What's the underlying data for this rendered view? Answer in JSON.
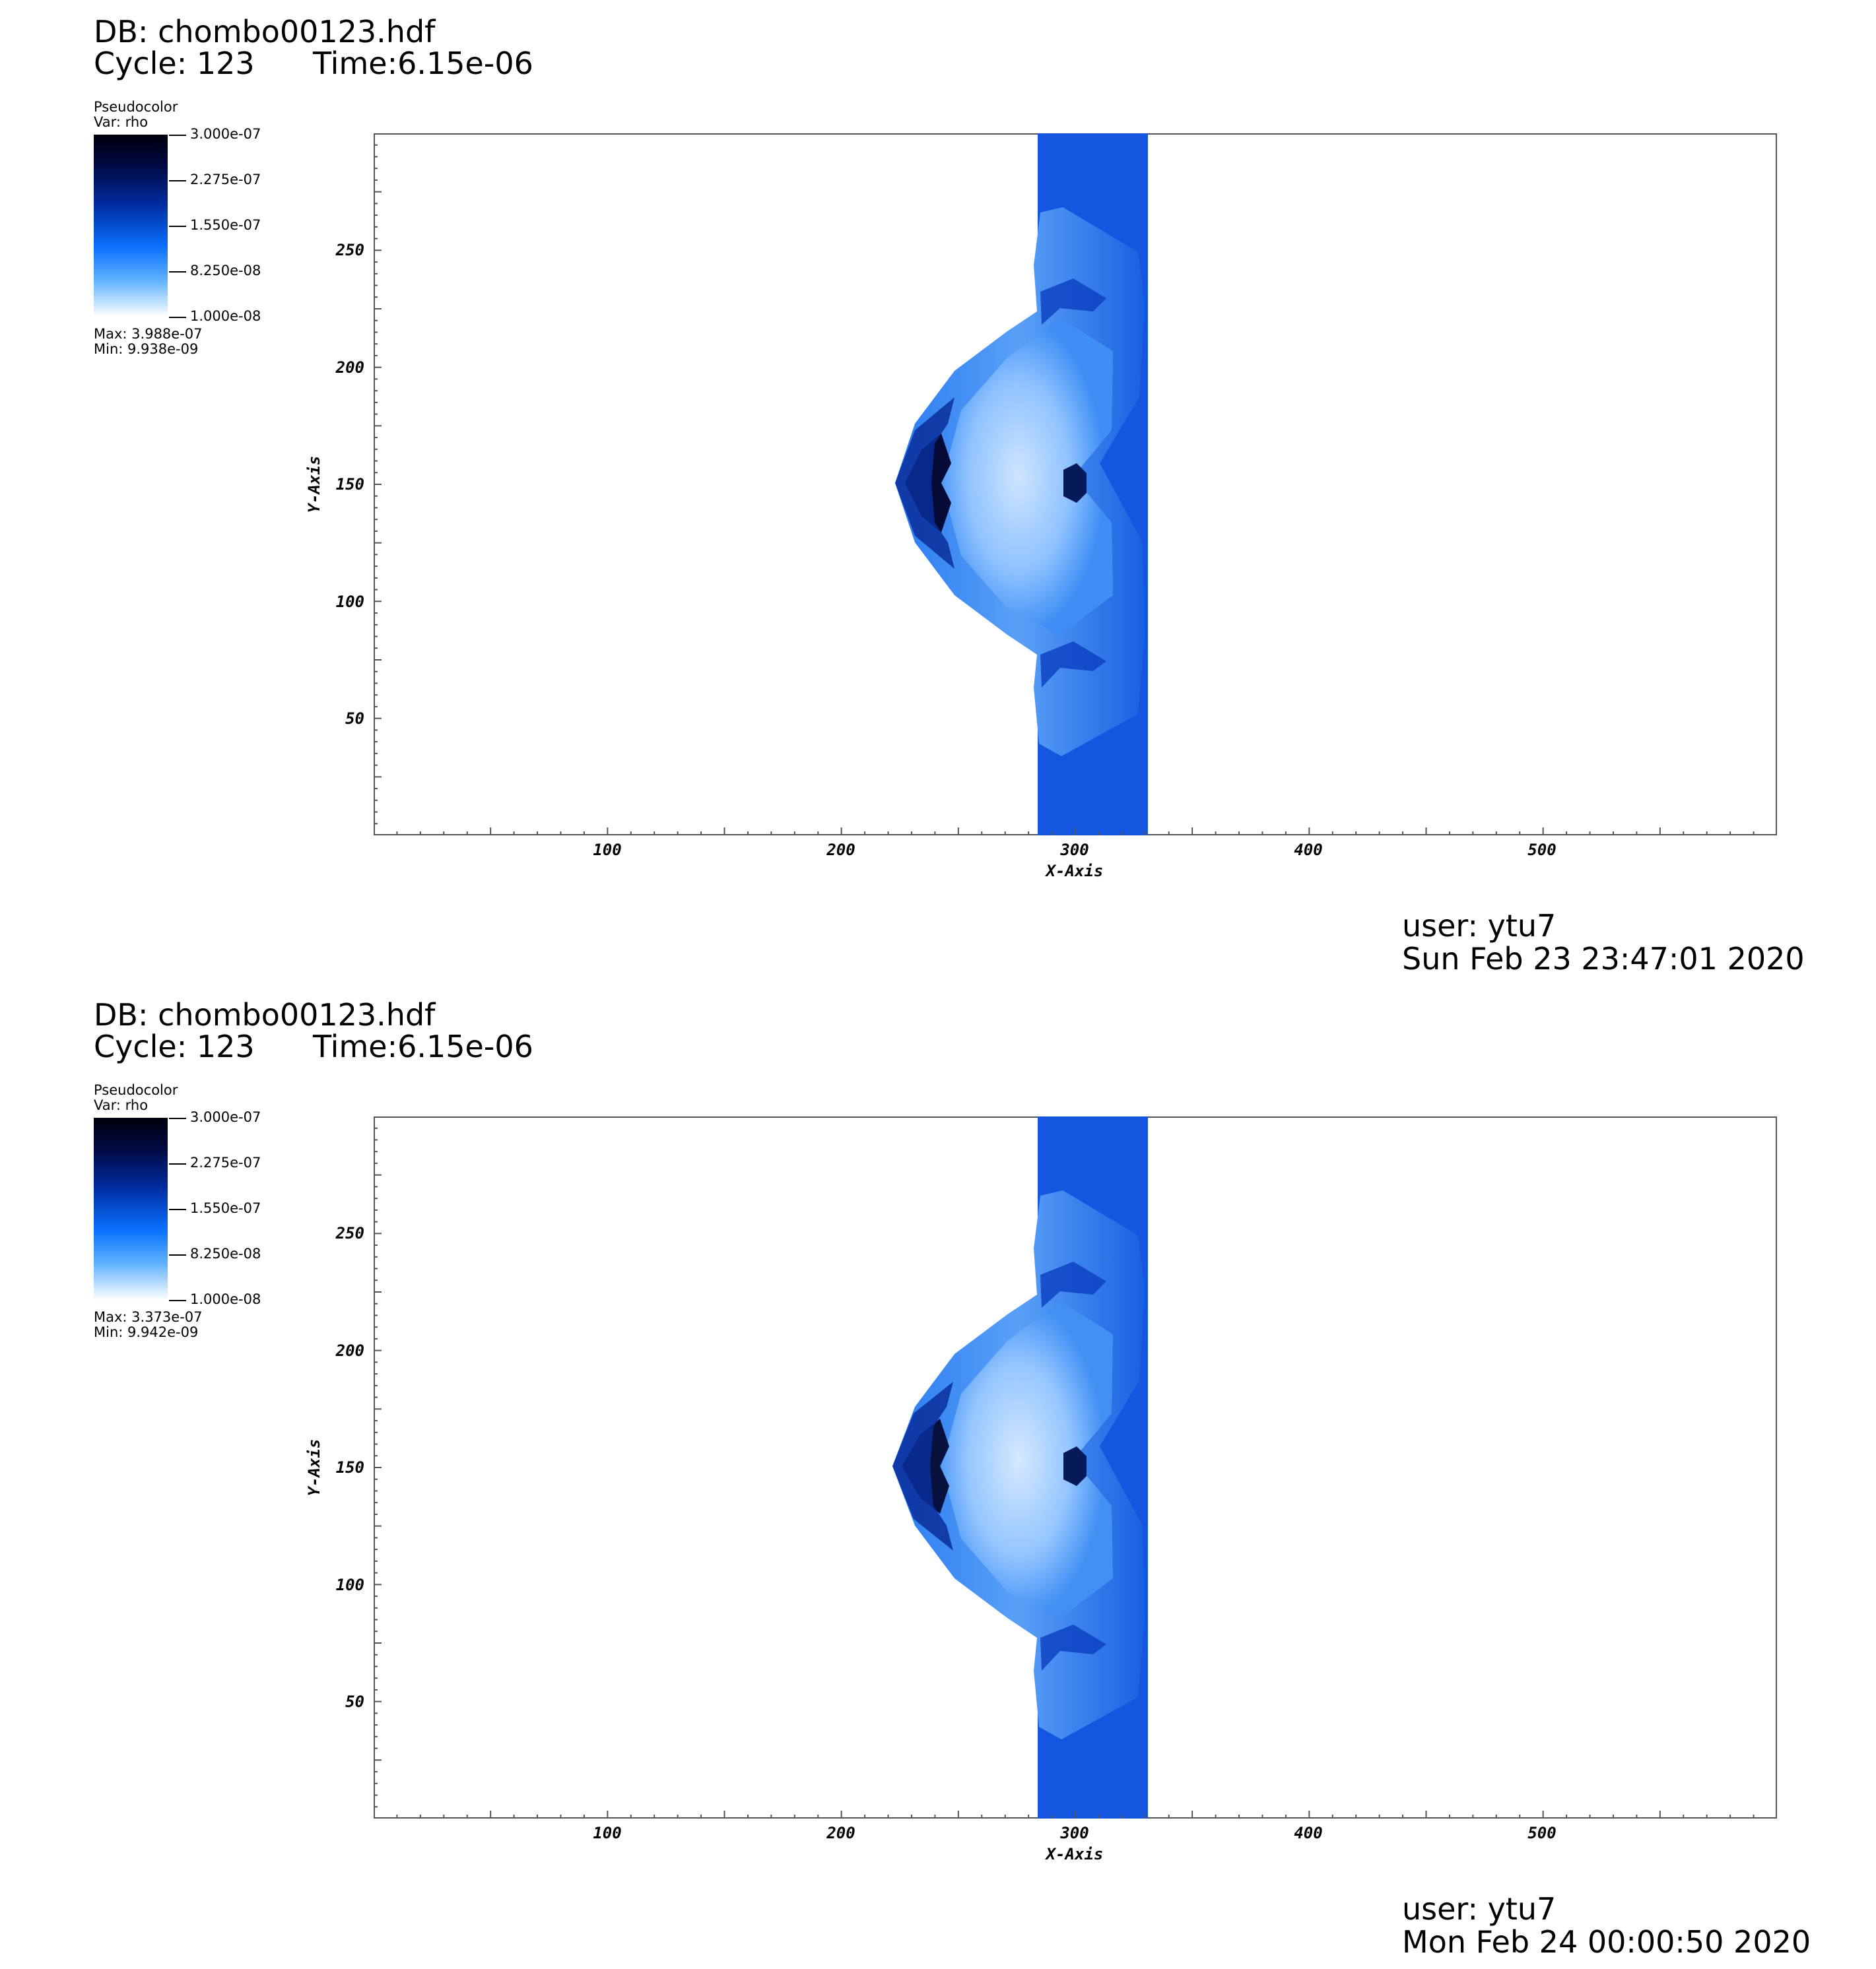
{
  "chart_data": [
    {
      "type": "heatmap",
      "title": "DB: chombo00123.hdf",
      "cycle_label": "Cycle: 123",
      "time_label": "Time:6.15e-06",
      "plot_label": "Pseudocolor",
      "var_label": "Var: rho",
      "colorbar_ticks": [
        "3.000e-07",
        "2.275e-07",
        "1.550e-07",
        "8.250e-08",
        "1.000e-08"
      ],
      "colorbar_range": [
        1e-08,
        3e-07
      ],
      "max_label": "Max:  3.988e-07",
      "min_label": "Min:  9.938e-09",
      "xlabel": "X-Axis",
      "ylabel": "Y-Axis",
      "xticks": [
        "100",
        "200",
        "300",
        "400",
        "500"
      ],
      "yticks": [
        "250",
        "200",
        "150",
        "100",
        "50"
      ],
      "xlim": [
        0,
        600
      ],
      "ylim": [
        0,
        300
      ],
      "colormap": [
        "#ffffff",
        "#0a72ff",
        "#002ca0",
        "#000000"
      ],
      "user_label": "user: ytu7",
      "date_label": "Sun Feb 23 23:47:01 2020"
    },
    {
      "type": "heatmap",
      "title": "DB: chombo00123.hdf",
      "cycle_label": "Cycle: 123",
      "time_label": "Time:6.15e-06",
      "plot_label": "Pseudocolor",
      "var_label": "Var: rho",
      "colorbar_ticks": [
        "3.000e-07",
        "2.275e-07",
        "1.550e-07",
        "8.250e-08",
        "1.000e-08"
      ],
      "colorbar_range": [
        1e-08,
        3e-07
      ],
      "max_label": "Max:  3.373e-07",
      "min_label": "Min:  9.942e-09",
      "xlabel": "X-Axis",
      "ylabel": "Y-Axis",
      "xticks": [
        "100",
        "200",
        "300",
        "400",
        "500"
      ],
      "yticks": [
        "250",
        "200",
        "150",
        "100",
        "50"
      ],
      "xlim": [
        0,
        600
      ],
      "ylim": [
        0,
        300
      ],
      "colormap": [
        "#ffffff",
        "#0a72ff",
        "#002ca0",
        "#000000"
      ],
      "user_label": "user: ytu7",
      "date_label": "Mon Feb 24 00:00:50 2020"
    }
  ]
}
